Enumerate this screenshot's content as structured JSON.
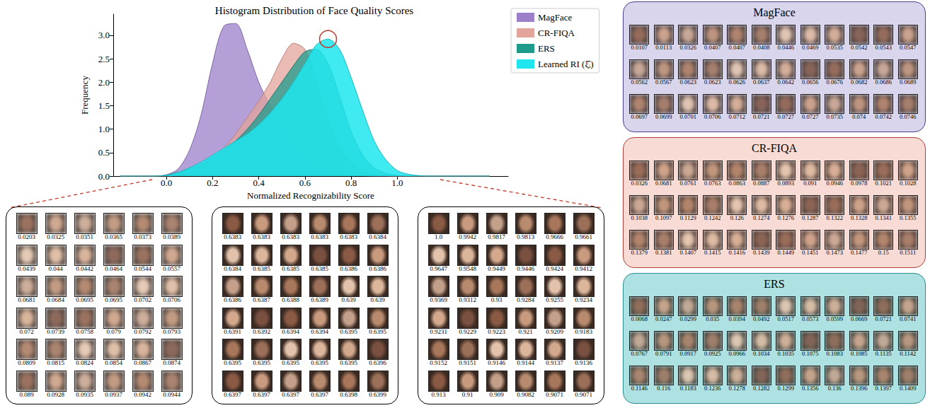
{
  "chart_data": {
    "type": "area",
    "title": "Histogram Distribution of Face Quality Scores",
    "x_label": "Normalized Recognizability Score",
    "y_label": "Frequency",
    "xlim": [
      -0.23,
      1.48
    ],
    "ylim": [
      0,
      3.45
    ],
    "xticks": [
      {
        "value": 0,
        "label": "0.0"
      },
      {
        "value": 0.2,
        "label": "0.2"
      },
      {
        "value": 0.4,
        "label": "0.4"
      },
      {
        "value": 0.6,
        "label": "0.6"
      },
      {
        "value": 0.8,
        "label": "0.8"
      },
      {
        "value": 1,
        "label": "1.0"
      }
    ],
    "yticks": [
      {
        "value": 0,
        "label": "0.0"
      },
      0.5,
      {
        "value": 1,
        "label": "1.0"
      },
      1.5,
      {
        "value": 2,
        "label": "2.0"
      },
      2.5,
      {
        "value": 3,
        "label": "3.0"
      }
    ],
    "grid": false,
    "legend": "right",
    "x": [
      -0.2,
      -0.15,
      -0.1,
      -0.05,
      0,
      0.05,
      0.1,
      0.15,
      0.2,
      0.25,
      0.3,
      0.35,
      0.4,
      0.45,
      0.5,
      0.55,
      0.6,
      0.65,
      0.7,
      0.75,
      0.8,
      0.85,
      0.9,
      0.95,
      1.0,
      1.05,
      1.1,
      1.15,
      1.2,
      1.25,
      1.3,
      1.35,
      1.4
    ],
    "series": [
      {
        "name": "MagFace",
        "color": "#9b7fc8",
        "values": [
          0,
          0,
          0,
          0,
          0.03,
          0.15,
          0.55,
          1.3,
          2.4,
          3.2,
          3.25,
          2.7,
          2.0,
          1.5,
          1.1,
          0.75,
          0.45,
          0.25,
          0.12,
          0.05,
          0.02,
          0.01,
          0,
          0,
          0,
          0,
          0,
          0,
          0,
          0,
          0,
          0,
          0
        ]
      },
      {
        "name": "CR-FIQA",
        "color": "#e3a49c",
        "values": [
          0,
          0,
          0,
          0,
          0,
          0.02,
          0.08,
          0.2,
          0.35,
          0.6,
          0.9,
          1.25,
          1.6,
          2.0,
          2.5,
          2.83,
          2.7,
          2.0,
          1.2,
          0.6,
          0.28,
          0.1,
          0.04,
          0.01,
          0,
          0,
          0,
          0,
          0,
          0,
          0,
          0,
          0
        ]
      },
      {
        "name": "ERS",
        "color": "#1f9b8c",
        "values": [
          0,
          0,
          0,
          0,
          0.02,
          0.08,
          0.15,
          0.25,
          0.4,
          0.55,
          0.75,
          1.0,
          1.3,
          1.65,
          2.0,
          2.35,
          2.65,
          2.7,
          2.4,
          1.7,
          0.95,
          0.45,
          0.18,
          0.06,
          0.02,
          0,
          0,
          0,
          0,
          0,
          0,
          0,
          0
        ]
      },
      {
        "name": "Learned RI (ξ̂ᵢ)",
        "color": "#1fe6ee",
        "values": [
          0,
          0,
          0,
          0,
          0.02,
          0.08,
          0.18,
          0.3,
          0.45,
          0.6,
          0.75,
          0.9,
          1.1,
          1.35,
          1.65,
          2.0,
          2.4,
          2.8,
          2.92,
          2.7,
          2.1,
          1.4,
          0.75,
          0.35,
          0.12,
          0.04,
          0.01,
          0,
          0,
          0,
          0,
          0,
          0
        ]
      }
    ]
  },
  "zoom_panels": [
    {
      "scores": [
        "0.0203",
        "0.0325",
        "0.0351",
        "0.0365",
        "0.0373",
        "0.0389",
        "0.0439",
        "0.044",
        "0.0442",
        "0.0464",
        "0.0544",
        "0.0557",
        "0.0681",
        "0.0684",
        "0.0695",
        "0.0695",
        "0.0702",
        "0.0706",
        "0.072",
        "0.0739",
        "0.0758",
        "0.079",
        "0.0792",
        "0.0793",
        "0.0809",
        "0.0815",
        "0.0824",
        "0.0854",
        "0.0867",
        "0.0874",
        "0.089",
        "0.0928",
        "0.0935",
        "0.0937",
        "0.0942",
        "0.0944"
      ]
    },
    {
      "scores": [
        "0.6383",
        "0.6383",
        "0.6383",
        "0.6383",
        "0.6383",
        "0.6384",
        "0.6384",
        "0.6385",
        "0.6385",
        "0.6385",
        "0.6386",
        "0.6386",
        "0.6386",
        "0.6387",
        "0.6388",
        "0.6389",
        "0.639",
        "0.639",
        "0.6391",
        "0.6392",
        "0.6394",
        "0.6394",
        "0.6395",
        "0.6395",
        "0.6395",
        "0.6395",
        "0.6395",
        "0.6395",
        "0.6395",
        "0.6396",
        "0.6397",
        "0.6397",
        "0.6397",
        "0.6397",
        "0.6398",
        "0.6399"
      ]
    },
    {
      "scores": [
        "1.0",
        "0.9942",
        "0.9817",
        "0.9813",
        "0.9666",
        "0.9661",
        "0.9647",
        "0.9548",
        "0.9449",
        "0.9446",
        "0.9424",
        "0.9412",
        "0.9369",
        "0.9312",
        "0.93",
        "0.9284",
        "0.9255",
        "0.9234",
        "0.9231",
        "0.9229",
        "0.9223",
        "0.921",
        "0.9209",
        "0.9183",
        "0.9152",
        "0.9151",
        "0.9146",
        "0.9144",
        "0.9137",
        "0.9136",
        "0.913",
        "0.91",
        "0.909",
        "0.9082",
        "0.9071",
        "0.9071"
      ]
    }
  ],
  "method_panels": [
    {
      "title": "MagFace",
      "scores": [
        "0.0107",
        "0.0113",
        "0.0326",
        "0.0407",
        "0.0407",
        "0.0408",
        "0.0446",
        "0.0469",
        "0.0535",
        "0.0542",
        "0.0543",
        "0.0547",
        "0.0562",
        "0.0567",
        "0.0623",
        "0.0623",
        "0.0626",
        "0.0637",
        "0.0642",
        "0.0656",
        "0.0676",
        "0.0682",
        "0.0686",
        "0.0689",
        "0.0697",
        "0.0699",
        "0.0701",
        "0.0706",
        "0.0712",
        "0.0721",
        "0.0727",
        "0.0727",
        "0.0735",
        "0.074",
        "0.0742",
        "0.0746"
      ]
    },
    {
      "title": "CR-FIQA",
      "scores": [
        "0.0326",
        "0.0681",
        "0.0761",
        "0.0763",
        "0.0863",
        "0.0887",
        "0.0893",
        "0.091",
        "0.0946",
        "0.0978",
        "0.1021",
        "0.1028",
        "0.1038",
        "0.1097",
        "0.1129",
        "0.1242",
        "0.126",
        "0.1274",
        "0.1276",
        "0.1287",
        "0.1322",
        "0.1328",
        "0.1341",
        "0.1355",
        "0.1379",
        "0.1381",
        "0.1407",
        "0.1415",
        "0.1416",
        "0.1439",
        "0.1449",
        "0.1451",
        "0.1473",
        "0.1477",
        "0.15",
        "0.1511"
      ]
    },
    {
      "title": "ERS",
      "scores": [
        "0.0068",
        "0.0247",
        "0.0299",
        "0.035",
        "0.0394",
        "0.0492",
        "0.0517",
        "0.0573",
        "0.0599",
        "0.0669",
        "0.0721",
        "0.0741",
        "0.0767",
        "0.0791",
        "0.0917",
        "0.0925",
        "0.0966",
        "0.1034",
        "0.1035",
        "0.1075",
        "0.1083",
        "0.1085",
        "0.1135",
        "0.1142",
        "0.1146",
        "0.116",
        "0.1183",
        "0.1236",
        "0.1278",
        "0.1282",
        "0.1299",
        "0.1356",
        "0.136",
        "0.1396",
        "0.1397",
        "0.1409"
      ]
    }
  ]
}
